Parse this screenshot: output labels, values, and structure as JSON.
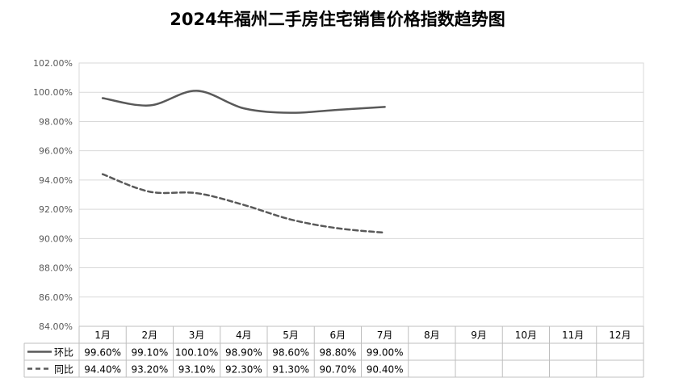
{
  "chart_data": {
    "type": "line",
    "title": "2024年福州二手房住宅销售价格指数趋势图",
    "categories": [
      "1月",
      "2月",
      "3月",
      "4月",
      "5月",
      "6月",
      "7月",
      "8月",
      "9月",
      "10月",
      "11月",
      "12月"
    ],
    "series": [
      {
        "name": "环比",
        "values": [
          99.6,
          99.1,
          100.1,
          98.9,
          98.6,
          98.8,
          99.0,
          null,
          null,
          null,
          null,
          null
        ],
        "labels": [
          "99.60%",
          "99.10%",
          "100.10%",
          "98.90%",
          "98.60%",
          "98.80%",
          "99.00%",
          "",
          "",
          "",
          "",
          ""
        ],
        "color": "#595959",
        "line_style": "solid"
      },
      {
        "name": "同比",
        "values": [
          94.4,
          93.2,
          93.1,
          92.3,
          91.3,
          90.7,
          90.4,
          null,
          null,
          null,
          null,
          null
        ],
        "labels": [
          "94.40%",
          "93.20%",
          "93.10%",
          "92.30%",
          "91.30%",
          "90.70%",
          "90.40%",
          "",
          "",
          "",
          "",
          ""
        ],
        "color": "#595959",
        "line_style": "dashed"
      }
    ],
    "ylim": [
      84,
      102
    ],
    "yticks": [
      "84.00%",
      "86.00%",
      "88.00%",
      "90.00%",
      "92.00%",
      "94.00%",
      "96.00%",
      "98.00%",
      "100.00%",
      "102.00%"
    ],
    "grid": true,
    "legend": "data-table"
  }
}
